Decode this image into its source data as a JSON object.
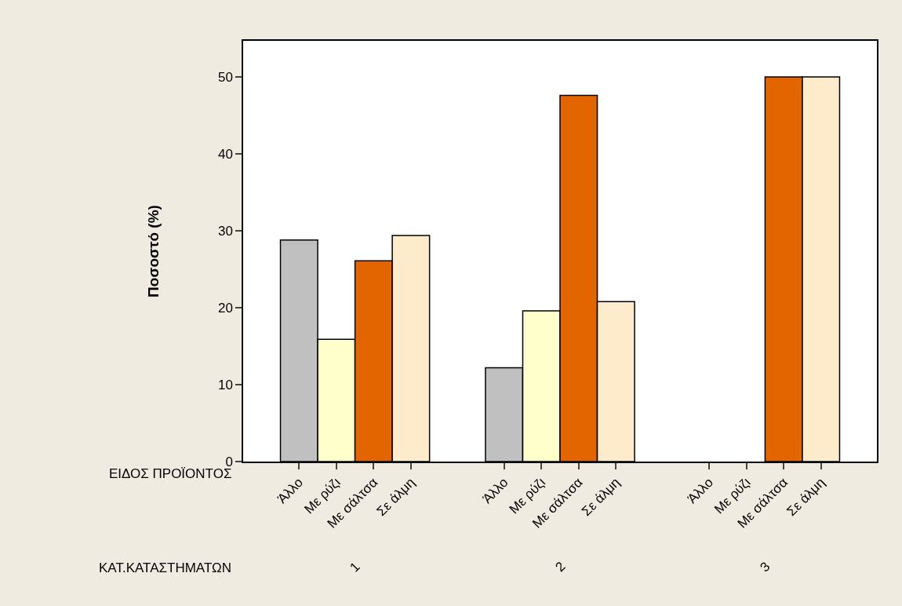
{
  "chart_data": {
    "type": "bar",
    "ylabel": "Ποσοστό (%)",
    "categories": [
      "1",
      "2",
      "3"
    ],
    "series": [
      {
        "name": "Άλλο",
        "color": "#c0c0c0",
        "values": [
          28.8,
          12.2,
          0
        ]
      },
      {
        "name": "Με ρύζι",
        "color": "#ffffcc",
        "values": [
          15.9,
          19.6,
          0
        ]
      },
      {
        "name": "Με σάλτσα",
        "color": "#e36500",
        "values": [
          26.1,
          47.6,
          50.0
        ]
      },
      {
        "name": "Σε άλμη",
        "color": "#fdebcc",
        "values": [
          29.4,
          20.8,
          50.0
        ]
      }
    ],
    "ylim": [
      0,
      54.7
    ],
    "yticks": [
      0,
      10,
      20,
      30,
      40,
      50
    ],
    "legend": false,
    "annotations": [
      "ΕΙΔΟΣ ΠΡΟΪΟΝΤΟΣ",
      "ΚΑΤ.ΚΑΤΑΣΤΗΜΑΤΩΝ"
    ]
  }
}
